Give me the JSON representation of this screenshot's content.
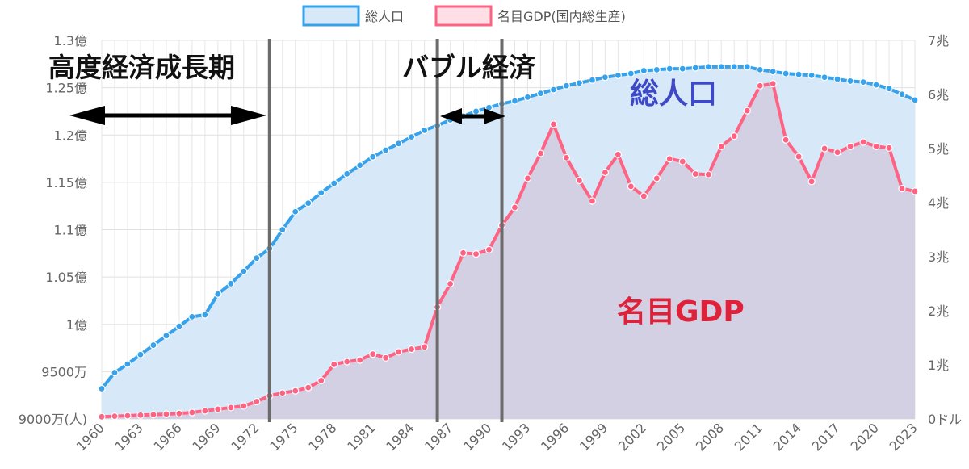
{
  "chart_data": {
    "type": "line",
    "legend_position": "top-center",
    "grid": true,
    "left_axis": {
      "series": "総人口",
      "range": [
        90000000,
        130000000
      ],
      "ticks": [
        {
          "value": 130000000,
          "label": "1.3億"
        },
        {
          "value": 125000000,
          "label": "1.25億"
        },
        {
          "value": 120000000,
          "label": "1.2億"
        },
        {
          "value": 115000000,
          "label": "1.15億"
        },
        {
          "value": 110000000,
          "label": "1.1億"
        },
        {
          "value": 105000000,
          "label": "1.05億"
        },
        {
          "value": 100000000,
          "label": "1億"
        },
        {
          "value": 95000000,
          "label": "9500万"
        },
        {
          "value": 90000000,
          "label": "9000万(人)"
        }
      ]
    },
    "right_axis": {
      "series": "名目GDP(国内総生産)",
      "range": [
        0,
        7
      ],
      "ticks": [
        {
          "value": 7,
          "label": "7兆"
        },
        {
          "value": 6,
          "label": "6兆"
        },
        {
          "value": 5,
          "label": "5兆"
        },
        {
          "value": 4,
          "label": "4兆"
        },
        {
          "value": 3,
          "label": "3兆"
        },
        {
          "value": 2,
          "label": "2兆"
        },
        {
          "value": 1,
          "label": "1兆"
        },
        {
          "value": 0,
          "label": "0ドル"
        }
      ]
    },
    "x_range": [
      1960,
      2023
    ],
    "x_tick_labels": [
      "1960",
      "1963",
      "1966",
      "1969",
      "1972",
      "1975",
      "1978",
      "1981",
      "1984",
      "1987",
      "1990",
      "1993",
      "1996",
      "1999",
      "2002",
      "2005",
      "2008",
      "2011",
      "2014",
      "2017",
      "2020",
      "2023"
    ],
    "series": [
      {
        "name": "総人口",
        "color": "#36a2eb",
        "fill": "#d7e9f8",
        "axis": "left",
        "x": [
          1960,
          1961,
          1962,
          1963,
          1964,
          1965,
          1966,
          1967,
          1968,
          1969,
          1970,
          1971,
          1972,
          1973,
          1974,
          1975,
          1976,
          1977,
          1978,
          1979,
          1980,
          1981,
          1982,
          1983,
          1984,
          1985,
          1986,
          1987,
          1988,
          1989,
          1990,
          1991,
          1992,
          1993,
          1994,
          1995,
          1996,
          1997,
          1998,
          1999,
          2000,
          2001,
          2002,
          2003,
          2004,
          2005,
          2006,
          2007,
          2008,
          2009,
          2010,
          2011,
          2012,
          2013,
          2014,
          2015,
          2016,
          2017,
          2018,
          2019,
          2020,
          2021,
          2022,
          2023
        ],
        "values": [
          93200000,
          94900000,
          95800000,
          96800000,
          97800000,
          98800000,
          99800000,
          100800000,
          101000000,
          103200000,
          104300000,
          105600000,
          107000000,
          108000000,
          110000000,
          111900000,
          112800000,
          113900000,
          114900000,
          115900000,
          116800000,
          117700000,
          118400000,
          119100000,
          119800000,
          120500000,
          121000000,
          121600000,
          122000000,
          122500000,
          122900000,
          123300000,
          123600000,
          124000000,
          124400000,
          124800000,
          125200000,
          125500000,
          125800000,
          126100000,
          126300000,
          126500000,
          126800000,
          126900000,
          127000000,
          127000000,
          127100000,
          127200000,
          127200000,
          127200000,
          127200000,
          126900000,
          126700000,
          126500000,
          126400000,
          126300000,
          126100000,
          125900000,
          125700000,
          125600000,
          125300000,
          124900000,
          124300000,
          123700000
        ]
      },
      {
        "name": "名目GDP(国内総生産)",
        "color": "#ff6384",
        "fill": "#d4cbe0",
        "axis": "right",
        "x": [
          1960,
          1961,
          1962,
          1963,
          1964,
          1965,
          1966,
          1967,
          1968,
          1969,
          1970,
          1971,
          1972,
          1973,
          1974,
          1975,
          1976,
          1977,
          1978,
          1979,
          1980,
          1981,
          1982,
          1983,
          1984,
          1985,
          1986,
          1987,
          1988,
          1989,
          1990,
          1991,
          1992,
          1993,
          1994,
          1995,
          1996,
          1997,
          1998,
          1999,
          2000,
          2001,
          2002,
          2003,
          2004,
          2005,
          2006,
          2007,
          2008,
          2009,
          2010,
          2011,
          2012,
          2013,
          2014,
          2015,
          2016,
          2017,
          2018,
          2019,
          2020,
          2021,
          2022,
          2023
        ],
        "values": [
          0.04,
          0.05,
          0.06,
          0.07,
          0.08,
          0.09,
          0.1,
          0.12,
          0.15,
          0.18,
          0.21,
          0.24,
          0.32,
          0.43,
          0.48,
          0.52,
          0.58,
          0.71,
          1.01,
          1.06,
          1.09,
          1.2,
          1.13,
          1.24,
          1.29,
          1.33,
          2.07,
          2.5,
          3.07,
          3.05,
          3.13,
          3.58,
          3.91,
          4.45,
          4.91,
          5.45,
          4.83,
          4.41,
          4.03,
          4.56,
          4.89,
          4.3,
          4.12,
          4.45,
          4.81,
          4.76,
          4.53,
          4.52,
          5.04,
          5.23,
          5.7,
          6.16,
          6.2,
          5.16,
          4.85,
          4.39,
          5.0,
          4.93,
          5.04,
          5.12,
          5.04,
          5.01,
          4.26,
          4.21
        ]
      }
    ],
    "vertical_markers": [
      1973,
      1986,
      1991
    ],
    "annotations": {
      "high_growth": "高度経済成長期",
      "bubble": "バブル経済",
      "population": "総人口",
      "gdp": "名目GDP"
    }
  }
}
